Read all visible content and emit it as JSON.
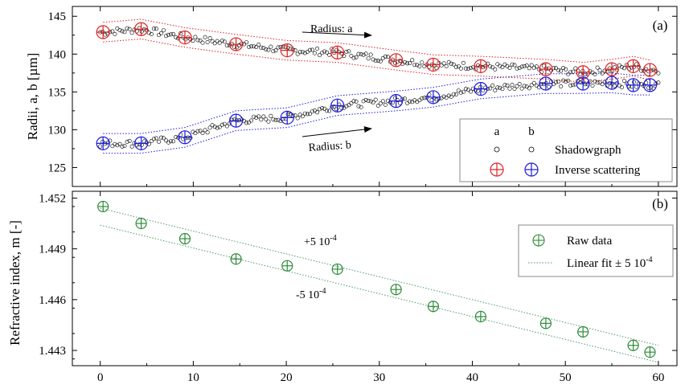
{
  "chart_data": [
    {
      "type": "scatter",
      "panel_label": "(a)",
      "ylabel": "Radii, a, b [µm]",
      "xlim": [
        -3,
        62
      ],
      "ylim": [
        122.5,
        146.3
      ],
      "yticks": [
        125,
        130,
        135,
        140,
        145
      ],
      "grid": false,
      "colors": {
        "a": "#e02020",
        "b": "#1a1ae0",
        "shadow": "#000000"
      },
      "shadowgraph_a": {
        "start": 143.0,
        "end": 137.8,
        "x_range": [
          0,
          60
        ]
      },
      "shadowgraph_b": {
        "start": 127.0,
        "end": 136.2,
        "x_range": [
          0,
          60
        ]
      },
      "series": [
        {
          "name": "Inverse scattering",
          "radius": "a",
          "x": [
            0.3,
            4.4,
            9.1,
            14.6,
            20.1,
            25.5,
            31.8,
            35.8,
            40.9,
            47.9,
            51.9,
            55.0,
            57.3,
            59.1
          ],
          "y": [
            142.9,
            143.3,
            142.2,
            141.3,
            140.5,
            140.2,
            139.2,
            138.6,
            138.4,
            138.0,
            137.6,
            138.0,
            138.4,
            137.9
          ]
        },
        {
          "name": "Inverse scattering",
          "radius": "b",
          "x": [
            0.3,
            4.4,
            9.1,
            14.6,
            20.1,
            25.5,
            31.8,
            35.8,
            40.9,
            47.9,
            51.9,
            55.0,
            57.3,
            59.1
          ],
          "y": [
            128.2,
            128.2,
            129.0,
            131.2,
            131.6,
            133.2,
            133.8,
            134.3,
            135.4,
            136.1,
            136.1,
            136.2,
            135.9,
            135.9
          ]
        }
      ],
      "annotations": [
        "Radius: a",
        "Radius: b"
      ],
      "legend": {
        "position": "lower-right",
        "col_headers": [
          "a",
          "b"
        ],
        "rows": [
          "Shadowgraph",
          "Inverse scattering"
        ]
      }
    },
    {
      "type": "scatter",
      "panel_label": "(b)",
      "xlabel": "",
      "ylabel": "Refractive index, m [-]",
      "xlim": [
        -3,
        62
      ],
      "ylim": [
        1.4421,
        1.4524
      ],
      "xticks": [
        0,
        10,
        20,
        30,
        40,
        50,
        60
      ],
      "yticks": [
        1.443,
        1.446,
        1.449,
        1.452
      ],
      "ytick_labels": [
        "1.443",
        "1.446",
        "1.449",
        "1.452"
      ],
      "grid": false,
      "colors": {
        "raw": "#2e8b3a",
        "fit": "#4a9a6a"
      },
      "series": [
        {
          "name": "Raw data",
          "x": [
            0.3,
            4.4,
            9.1,
            14.6,
            20.1,
            25.5,
            31.8,
            35.8,
            40.9,
            47.9,
            51.9,
            57.3,
            59.1
          ],
          "y": [
            1.4515,
            1.4505,
            1.4496,
            1.4484,
            1.448,
            1.4478,
            1.4466,
            1.4456,
            1.445,
            1.4446,
            1.4441,
            1.4433,
            1.4429
          ]
        }
      ],
      "fit_lines": {
        "upper": {
          "x": [
            0,
            60
          ],
          "y": [
            1.4514,
            1.4433
          ]
        },
        "lower": {
          "x": [
            0,
            60
          ],
          "y": [
            1.4504,
            1.4423
          ]
        }
      },
      "annotations": [
        "+5 10",
        "-4",
        "-5 10",
        "-4"
      ],
      "legend": {
        "position": "top-right",
        "raw_label": "Raw data",
        "fit_label": "Linear fit  ± 5 10",
        "fit_sup": "-4"
      }
    }
  ]
}
